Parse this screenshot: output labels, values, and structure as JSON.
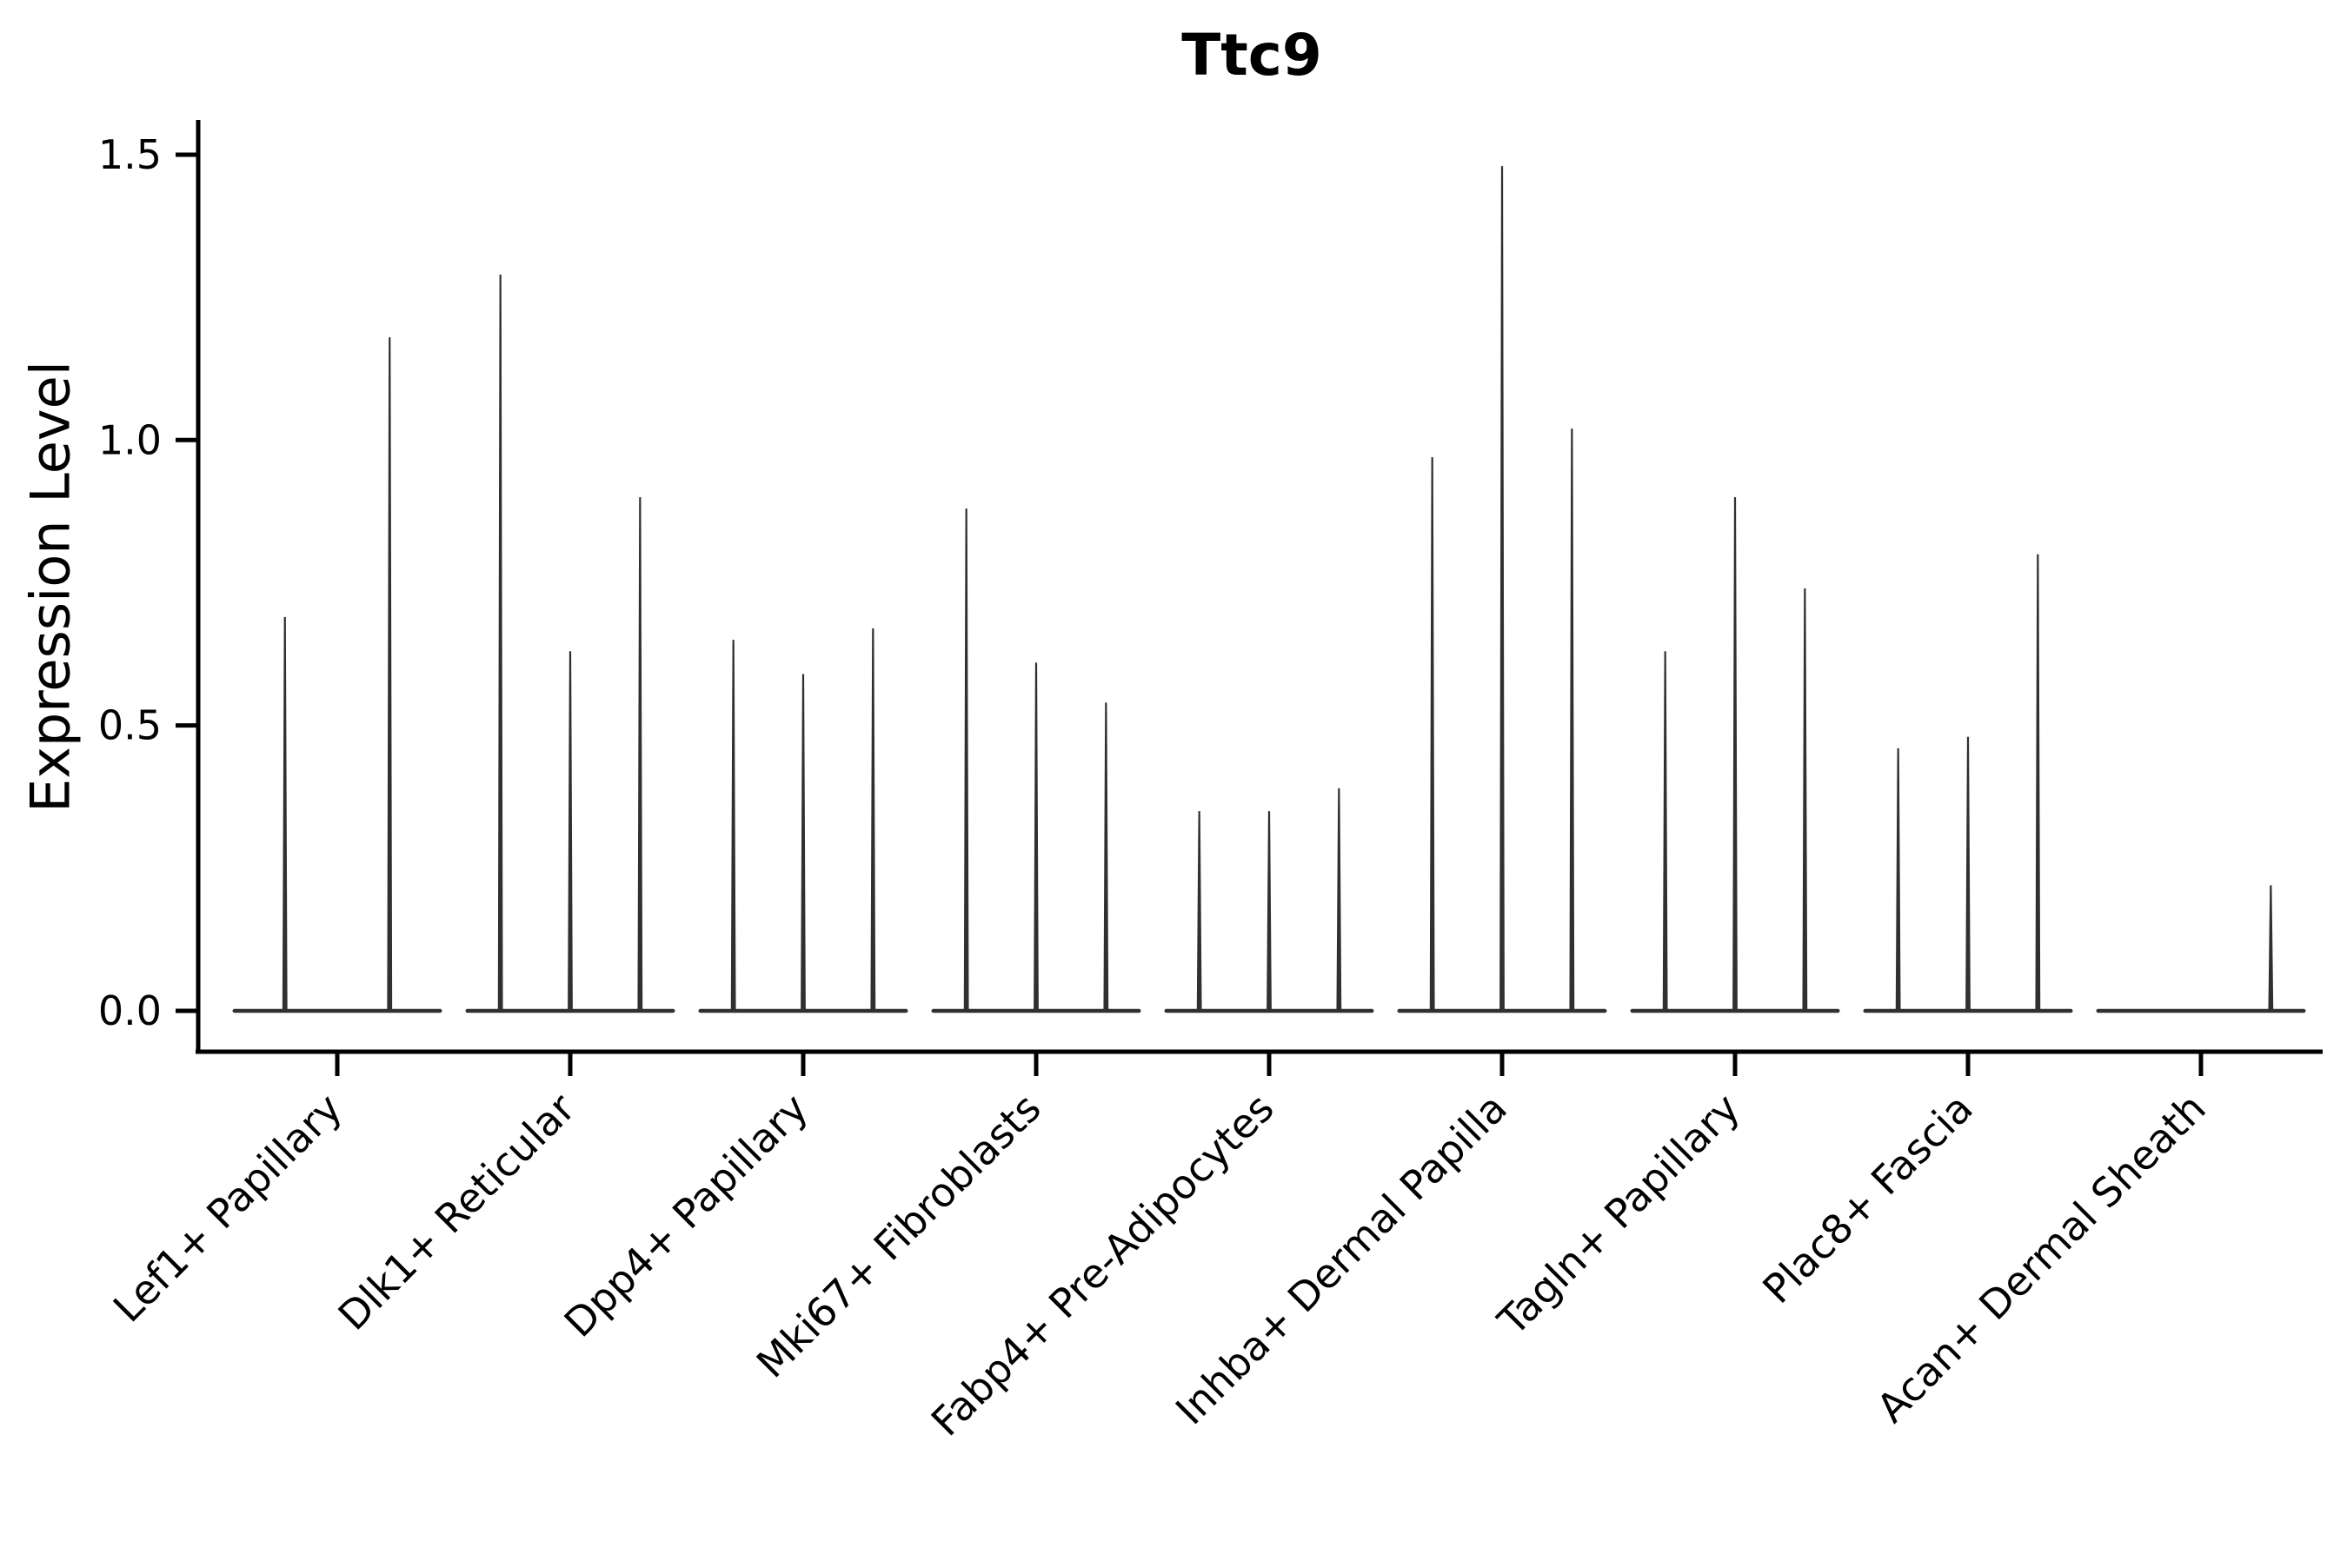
{
  "chart_data": {
    "type": "violin",
    "title": "Ttc9",
    "xlabel": "",
    "ylabel": "Expression Level",
    "y_ticks": [
      0.0,
      0.5,
      1.0,
      1.5
    ],
    "ylim": [
      0,
      1.55
    ],
    "grid": false,
    "legend": "none",
    "colors": {
      "violin": "#303030",
      "axis": "#000000",
      "text": "#000000",
      "background": "#ffffff"
    },
    "categories": [
      "Lef1+ Papillary",
      "Dlk1+ Reticular",
      "Dpp4+ Papillary",
      "Mki67+ Fibroblasts",
      "Fabp4+ Pre-Adipocytes",
      "Inhba+ Dermal Papilla",
      "Tagln+ Papillary",
      "Plac8+ Fascia",
      "Acan+ Dermal Sheath"
    ],
    "violins": [
      {
        "label": "Lef1+ Papillary",
        "peaks": [
          0.69,
          1.18
        ]
      },
      {
        "label": "Dlk1+ Reticular",
        "peaks": [
          1.29,
          0.63,
          0.9
        ]
      },
      {
        "label": "Dpp4+ Papillary",
        "peaks": [
          0.65,
          0.59,
          0.67
        ]
      },
      {
        "label": "Mki67+ Fibroblasts",
        "peaks": [
          0.88,
          0.61,
          0.54
        ]
      },
      {
        "label": "Fabp4+ Pre-Adipocytes",
        "peaks": [
          0.35,
          0.35,
          0.39
        ]
      },
      {
        "label": "Inhba+ Dermal Papilla",
        "peaks": [
          0.97,
          1.48,
          1.02
        ]
      },
      {
        "label": "Tagln+ Papillary",
        "peaks": [
          0.63,
          0.9,
          0.74
        ]
      },
      {
        "label": "Plac8+ Fascia",
        "peaks": [
          0.46,
          0.48,
          0.8
        ]
      },
      {
        "label": "Acan+ Dermal Sheath",
        "peaks": [
          0,
          0,
          0.22
        ]
      }
    ]
  }
}
